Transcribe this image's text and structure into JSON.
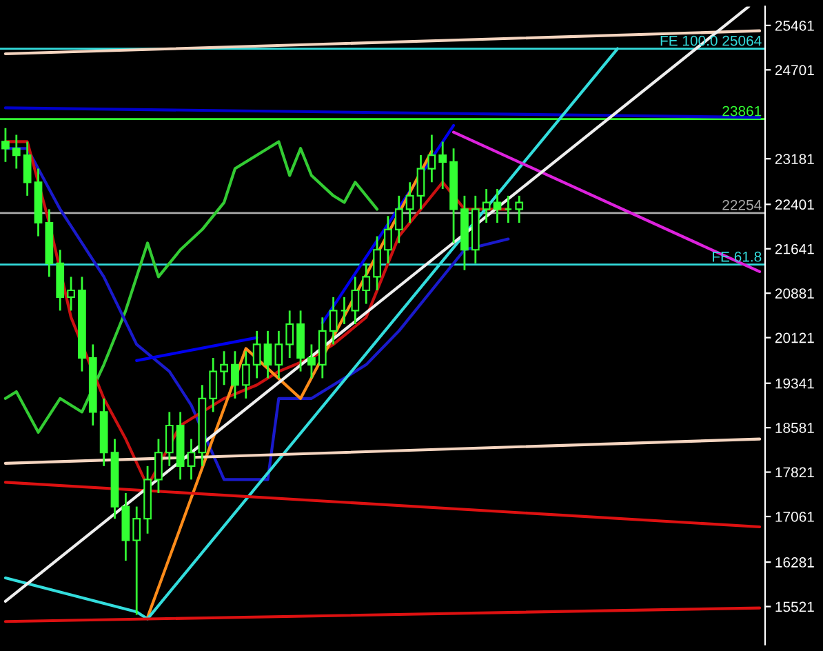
{
  "chart_data": {
    "type": "candlestick",
    "categories": [
      null,
      null,
      null,
      null,
      null,
      null,
      null,
      null,
      null,
      null,
      null,
      null,
      null,
      null,
      null,
      null,
      null,
      null,
      null,
      null,
      null,
      null,
      null,
      null,
      null,
      null,
      null,
      null,
      null,
      null,
      null,
      null,
      null,
      null,
      null,
      null,
      null,
      null,
      null,
      null,
      null,
      null,
      null,
      null,
      null,
      null,
      null,
      null,
      null,
      null,
      null,
      null,
      null,
      null,
      null,
      null,
      null,
      null,
      null,
      null,
      null,
      null,
      null,
      null,
      null,
      null,
      null,
      null,
      null,
      null
    ],
    "ylim": [
      14872,
      25785
    ],
    "yticks": [
      15521,
      16281,
      17061,
      17821,
      18581,
      19341,
      20121,
      20881,
      21641,
      22401,
      23181,
      24701,
      25461
    ],
    "color": "#33ff33",
    "ohlc": [
      [
        23473,
        23704,
        23126,
        23357
      ],
      [
        23357,
        23589,
        23011,
        23242
      ],
      [
        23242,
        23473,
        22548,
        22779
      ],
      [
        22779,
        23011,
        21855,
        22086
      ],
      [
        22086,
        22317,
        21161,
        21392
      ],
      [
        21392,
        21623,
        20583,
        20814
      ],
      [
        20814,
        21161,
        20583,
        20930
      ],
      [
        20930,
        21161,
        19543,
        19774
      ],
      [
        19774,
        20005,
        18618,
        18849
      ],
      [
        18849,
        19080,
        17924,
        18155
      ],
      [
        18155,
        18387,
        17023,
        17231
      ],
      [
        17231,
        17462,
        16306,
        16654
      ],
      [
        16654,
        17231,
        15381,
        17023
      ],
      [
        17023,
        17924,
        16768,
        17693
      ],
      [
        17693,
        18387,
        17462,
        18155
      ],
      [
        18155,
        18849,
        17924,
        18618
      ],
      [
        18618,
        18849,
        17693,
        17924
      ],
      [
        17924,
        18387,
        17693,
        18155
      ],
      [
        18155,
        19311,
        17924,
        19080
      ],
      [
        19080,
        19774,
        18849,
        19543
      ],
      [
        19543,
        19889,
        19311,
        19658
      ],
      [
        19658,
        19889,
        19080,
        19311
      ],
      [
        19311,
        19889,
        19080,
        19658
      ],
      [
        19658,
        20236,
        19427,
        20005
      ],
      [
        20005,
        20236,
        19427,
        19658
      ],
      [
        19658,
        20236,
        19427,
        20005
      ],
      [
        20005,
        20583,
        19774,
        20352
      ],
      [
        20352,
        20583,
        19543,
        19774
      ],
      [
        19774,
        20005,
        19427,
        19658
      ],
      [
        19658,
        20467,
        19427,
        20236
      ],
      [
        20236,
        20814,
        20005,
        20583
      ],
      [
        20583,
        20814,
        20352,
        20583
      ],
      [
        20583,
        21161,
        20352,
        20930
      ],
      [
        20930,
        21392,
        20699,
        21161
      ],
      [
        21161,
        21855,
        20930,
        21623
      ],
      [
        21623,
        22201,
        21392,
        21970
      ],
      [
        21970,
        22548,
        21739,
        22317
      ],
      [
        22317,
        22779,
        22086,
        22548
      ],
      [
        22548,
        23242,
        22317,
        23011
      ],
      [
        23011,
        23589,
        22779,
        23242
      ],
      [
        23242,
        23473,
        22664,
        23126
      ],
      [
        23126,
        23357,
        21739,
        22317
      ],
      [
        22317,
        22548,
        21277,
        21623
      ],
      [
        21623,
        22548,
        21392,
        22317
      ],
      [
        22317,
        22664,
        22086,
        22433
      ],
      [
        22433,
        22664,
        22086,
        22317
      ],
      [
        22317,
        22548,
        22086,
        22317
      ],
      [
        22317,
        22548,
        22086,
        22433
      ],
      null,
      null,
      null,
      null,
      null,
      null,
      null,
      null,
      null,
      null,
      null,
      null,
      null,
      null,
      null,
      null,
      null,
      null,
      null,
      null,
      null,
      null
    ],
    "series": [
      {
        "type": "line",
        "color": "#33cc33",
        "values": [
          19080,
          19196,
          null,
          18502,
          null,
          19080,
          null,
          18849,
          null,
          19658,
          null,
          20583,
          null,
          21739,
          21161,
          null,
          21623,
          null,
          21970,
          null,
          22433,
          23011,
          null,
          23242,
          null,
          23473,
          22895,
          23357,
          22895,
          null,
          22548,
          22433,
          22779,
          null,
          22317,
          null,
          null,
          null,
          null,
          null,
          null,
          null,
          null,
          null,
          null,
          null,
          null,
          null,
          null,
          null,
          null,
          null,
          null,
          null,
          null,
          null,
          null,
          null,
          null,
          null,
          null,
          null,
          null,
          null,
          null,
          null,
          null,
          null,
          null,
          null
        ]
      },
      {
        "type": "line",
        "color": "#1a1acc",
        "values": [
          23357,
          null,
          23357,
          null,
          null,
          22317,
          null,
          21739,
          null,
          21161,
          null,
          null,
          20005,
          null,
          null,
          19543,
          null,
          18965,
          null,
          null,
          17693,
          null,
          null,
          null,
          17693,
          19080,
          null,
          null,
          19080,
          null,
          null,
          null,
          null,
          19658,
          null,
          null,
          20236,
          null,
          null,
          20930,
          null,
          null,
          21623,
          null,
          null,
          null,
          21808,
          null,
          null,
          null,
          null,
          null,
          null,
          null,
          null,
          null,
          null,
          null,
          null,
          null,
          null,
          null,
          null,
          null,
          null,
          null,
          null,
          null,
          null,
          null
        ]
      },
      {
        "type": "line",
        "color": "#cc1111",
        "values": [
          23473,
          null,
          23473,
          null,
          22086,
          null,
          20467,
          null,
          null,
          19080,
          null,
          18387,
          null,
          17577,
          null,
          null,
          18618,
          null,
          null,
          null,
          19080,
          null,
          null,
          19311,
          null,
          19543,
          null,
          null,
          19774,
          null,
          20005,
          null,
          null,
          20467,
          null,
          null,
          21855,
          null,
          null,
          null,
          22779,
          null,
          22317,
          null,
          null,
          null,
          22317,
          null,
          null,
          null,
          null,
          null,
          null,
          null,
          null,
          null,
          null,
          null,
          null,
          null,
          null,
          null,
          null,
          null,
          null,
          null,
          null,
          null,
          null,
          null
        ]
      },
      {
        "type": "line",
        "color": "#0000ee",
        "values": [
          null,
          null,
          null,
          null,
          null,
          null,
          null,
          null,
          null,
          null,
          null,
          null,
          19728,
          null,
          null,
          null,
          null,
          null,
          null,
          null,
          null,
          null,
          null,
          20121,
          null,
          null,
          null,
          null,
          null,
          null,
          null,
          null,
          null,
          null,
          null,
          null,
          null,
          null,
          null,
          null,
          null,
          null,
          null,
          null,
          null,
          null,
          null,
          null,
          null,
          null,
          null,
          null,
          null,
          null,
          null,
          null,
          null,
          null,
          null,
          null,
          null,
          null,
          null,
          null,
          null,
          null,
          null,
          null,
          null,
          null
        ]
      },
      {
        "type": "line",
        "color": "#0000ee",
        "values": [
          null,
          null,
          null,
          null,
          null,
          null,
          null,
          null,
          null,
          null,
          null,
          null,
          null,
          null,
          null,
          null,
          null,
          null,
          null,
          null,
          null,
          null,
          null,
          null,
          null,
          null,
          null,
          null,
          null,
          20375,
          null,
          null,
          null,
          null,
          null,
          null,
          null,
          null,
          null,
          null,
          null,
          23750,
          null,
          null,
          null,
          null,
          null,
          null,
          null,
          null,
          null,
          null,
          null,
          null,
          null,
          null,
          null,
          null,
          null,
          null,
          null,
          null,
          null,
          null,
          null,
          null,
          null,
          null,
          null,
          null
        ]
      },
      {
        "type": "line",
        "color": "#0000cc",
        "values": [
          24051,
          null,
          null,
          null,
          null,
          null,
          null,
          null,
          null,
          null,
          null,
          null,
          null,
          null,
          null,
          null,
          null,
          null,
          null,
          null,
          null,
          null,
          null,
          null,
          null,
          null,
          null,
          null,
          null,
          null,
          null,
          null,
          null,
          null,
          null,
          null,
          null,
          null,
          null,
          null,
          null,
          null,
          null,
          null,
          null,
          null,
          null,
          null,
          null,
          null,
          null,
          null,
          null,
          null,
          null,
          null,
          null,
          null,
          null,
          null,
          null,
          null,
          null,
          null,
          null,
          null,
          null,
          null,
          null,
          23889
        ]
      },
      {
        "type": "line",
        "color": "#ff8c1a",
        "values": [
          null,
          null,
          null,
          null,
          null,
          null,
          null,
          null,
          null,
          null,
          null,
          null,
          null,
          15335,
          null,
          null,
          null,
          null,
          null,
          null,
          null,
          null,
          19935,
          null,
          null,
          null,
          null,
          19080,
          null,
          null,
          null,
          null,
          null,
          null,
          null,
          null,
          null,
          null,
          null,
          23310,
          null,
          null,
          null,
          null,
          null,
          null,
          null,
          null,
          null,
          null,
          null,
          null,
          null,
          null,
          null,
          null,
          null,
          null,
          null,
          null,
          null,
          null,
          null,
          null,
          null,
          null,
          null,
          null,
          null,
          null
        ]
      },
      {
        "type": "line",
        "color": "#33dddd",
        "values": [
          16010,
          null,
          null,
          null,
          null,
          null,
          null,
          null,
          null,
          null,
          null,
          null,
          15430,
          15310,
          null,
          null,
          null,
          null,
          null,
          null,
          null,
          null,
          null,
          null,
          null,
          null,
          null,
          null,
          null,
          null,
          null,
          null,
          null,
          null,
          null,
          null,
          null,
          null,
          null,
          null,
          null,
          null,
          null,
          null,
          null,
          null,
          null,
          null,
          null,
          null,
          null,
          null,
          null,
          null,
          null,
          null,
          25064,
          null,
          null,
          null,
          null,
          null,
          null,
          null,
          null,
          null,
          null,
          null,
          null,
          null
        ]
      },
      {
        "type": "line",
        "color": "#dd22dd",
        "values": [
          null,
          null,
          null,
          null,
          null,
          null,
          null,
          null,
          null,
          null,
          null,
          null,
          null,
          null,
          null,
          null,
          null,
          null,
          null,
          null,
          null,
          null,
          null,
          null,
          null,
          null,
          null,
          null,
          null,
          null,
          null,
          null,
          null,
          null,
          null,
          null,
          null,
          null,
          null,
          null,
          null,
          23635,
          null,
          null,
          null,
          null,
          null,
          null,
          null,
          null,
          null,
          null,
          null,
          null,
          null,
          null,
          null,
          null,
          null,
          null,
          null,
          null,
          null,
          null,
          null,
          null,
          null,
          null,
          null,
          21250
        ]
      },
      {
        "type": "line",
        "color": "#dd1111",
        "values": [
          17647,
          null,
          null,
          null,
          null,
          null,
          null,
          null,
          null,
          null,
          null,
          null,
          null,
          null,
          null,
          null,
          null,
          null,
          null,
          null,
          null,
          null,
          null,
          null,
          null,
          null,
          null,
          null,
          null,
          null,
          null,
          null,
          null,
          null,
          null,
          null,
          null,
          null,
          null,
          null,
          null,
          null,
          null,
          null,
          null,
          null,
          null,
          null,
          null,
          null,
          null,
          null,
          null,
          null,
          null,
          null,
          null,
          null,
          null,
          null,
          null,
          null,
          null,
          null,
          null,
          null,
          null,
          null,
          null,
          16884
        ]
      },
      {
        "type": "line",
        "color": "#dd1111",
        "values": [
          15265,
          null,
          null,
          null,
          null,
          null,
          null,
          null,
          null,
          null,
          null,
          null,
          null,
          null,
          null,
          null,
          null,
          null,
          null,
          null,
          null,
          null,
          null,
          null,
          null,
          null,
          null,
          null,
          null,
          null,
          null,
          null,
          null,
          null,
          null,
          null,
          null,
          null,
          null,
          null,
          null,
          null,
          null,
          null,
          null,
          null,
          null,
          null,
          null,
          null,
          null,
          null,
          null,
          null,
          null,
          null,
          null,
          null,
          null,
          null,
          null,
          null,
          null,
          null,
          null,
          null,
          null,
          null,
          null,
          15497
        ]
      },
      {
        "type": "line",
        "color": "#f5d5c0",
        "values": [
          17970,
          null,
          null,
          null,
          null,
          null,
          null,
          null,
          null,
          null,
          null,
          null,
          null,
          null,
          null,
          null,
          null,
          null,
          null,
          null,
          null,
          null,
          null,
          null,
          null,
          null,
          null,
          null,
          null,
          null,
          null,
          null,
          null,
          null,
          null,
          null,
          null,
          null,
          null,
          null,
          null,
          null,
          null,
          null,
          null,
          null,
          null,
          null,
          null,
          null,
          null,
          null,
          null,
          null,
          null,
          null,
          null,
          null,
          null,
          null,
          null,
          null,
          null,
          null,
          null,
          null,
          null,
          null,
          null,
          18387
        ]
      },
      {
        "type": "line",
        "color": "#f5d5c0",
        "values": [
          24976,
          null,
          null,
          null,
          null,
          null,
          null,
          null,
          null,
          null,
          null,
          null,
          null,
          null,
          null,
          null,
          null,
          null,
          null,
          null,
          null,
          null,
          null,
          null,
          null,
          null,
          null,
          null,
          null,
          null,
          null,
          null,
          null,
          null,
          null,
          null,
          null,
          null,
          null,
          null,
          null,
          null,
          null,
          null,
          null,
          null,
          null,
          null,
          null,
          null,
          null,
          null,
          null,
          null,
          null,
          null,
          null,
          null,
          null,
          null,
          null,
          null,
          null,
          null,
          null,
          null,
          null,
          null,
          null,
          25369
        ]
      },
      {
        "type": "line",
        "color": "#eeeeee",
        "values": [
          15612,
          null,
          null,
          null,
          null,
          null,
          null,
          null,
          null,
          null,
          null,
          null,
          null,
          null,
          null,
          null,
          null,
          null,
          null,
          null,
          null,
          null,
          null,
          null,
          null,
          null,
          null,
          null,
          null,
          null,
          null,
          null,
          null,
          null,
          null,
          null,
          null,
          null,
          null,
          null,
          null,
          null,
          null,
          null,
          null,
          null,
          null,
          null,
          null,
          null,
          null,
          null,
          null,
          null,
          null,
          null,
          null,
          null,
          null,
          null,
          null,
          null,
          null,
          null,
          null,
          null,
          null,
          null,
          25785,
          null
        ]
      }
    ],
    "ref_lines": [
      {
        "axis": "y",
        "value": 25064,
        "label": "FE 100.0 25064",
        "color": "#33dddd",
        "line_style": "solid"
      },
      {
        "axis": "y",
        "value": 23861,
        "label": "23861",
        "color": "#33ff33",
        "line_style": "solid"
      },
      {
        "axis": "y",
        "value": 22254,
        "label": "22254",
        "color": "#aaaaaa",
        "line_style": "solid"
      },
      {
        "axis": "y",
        "value": 21370,
        "label": "FE 61.8",
        "color": "#33dddd",
        "line_style": "solid"
      }
    ]
  }
}
